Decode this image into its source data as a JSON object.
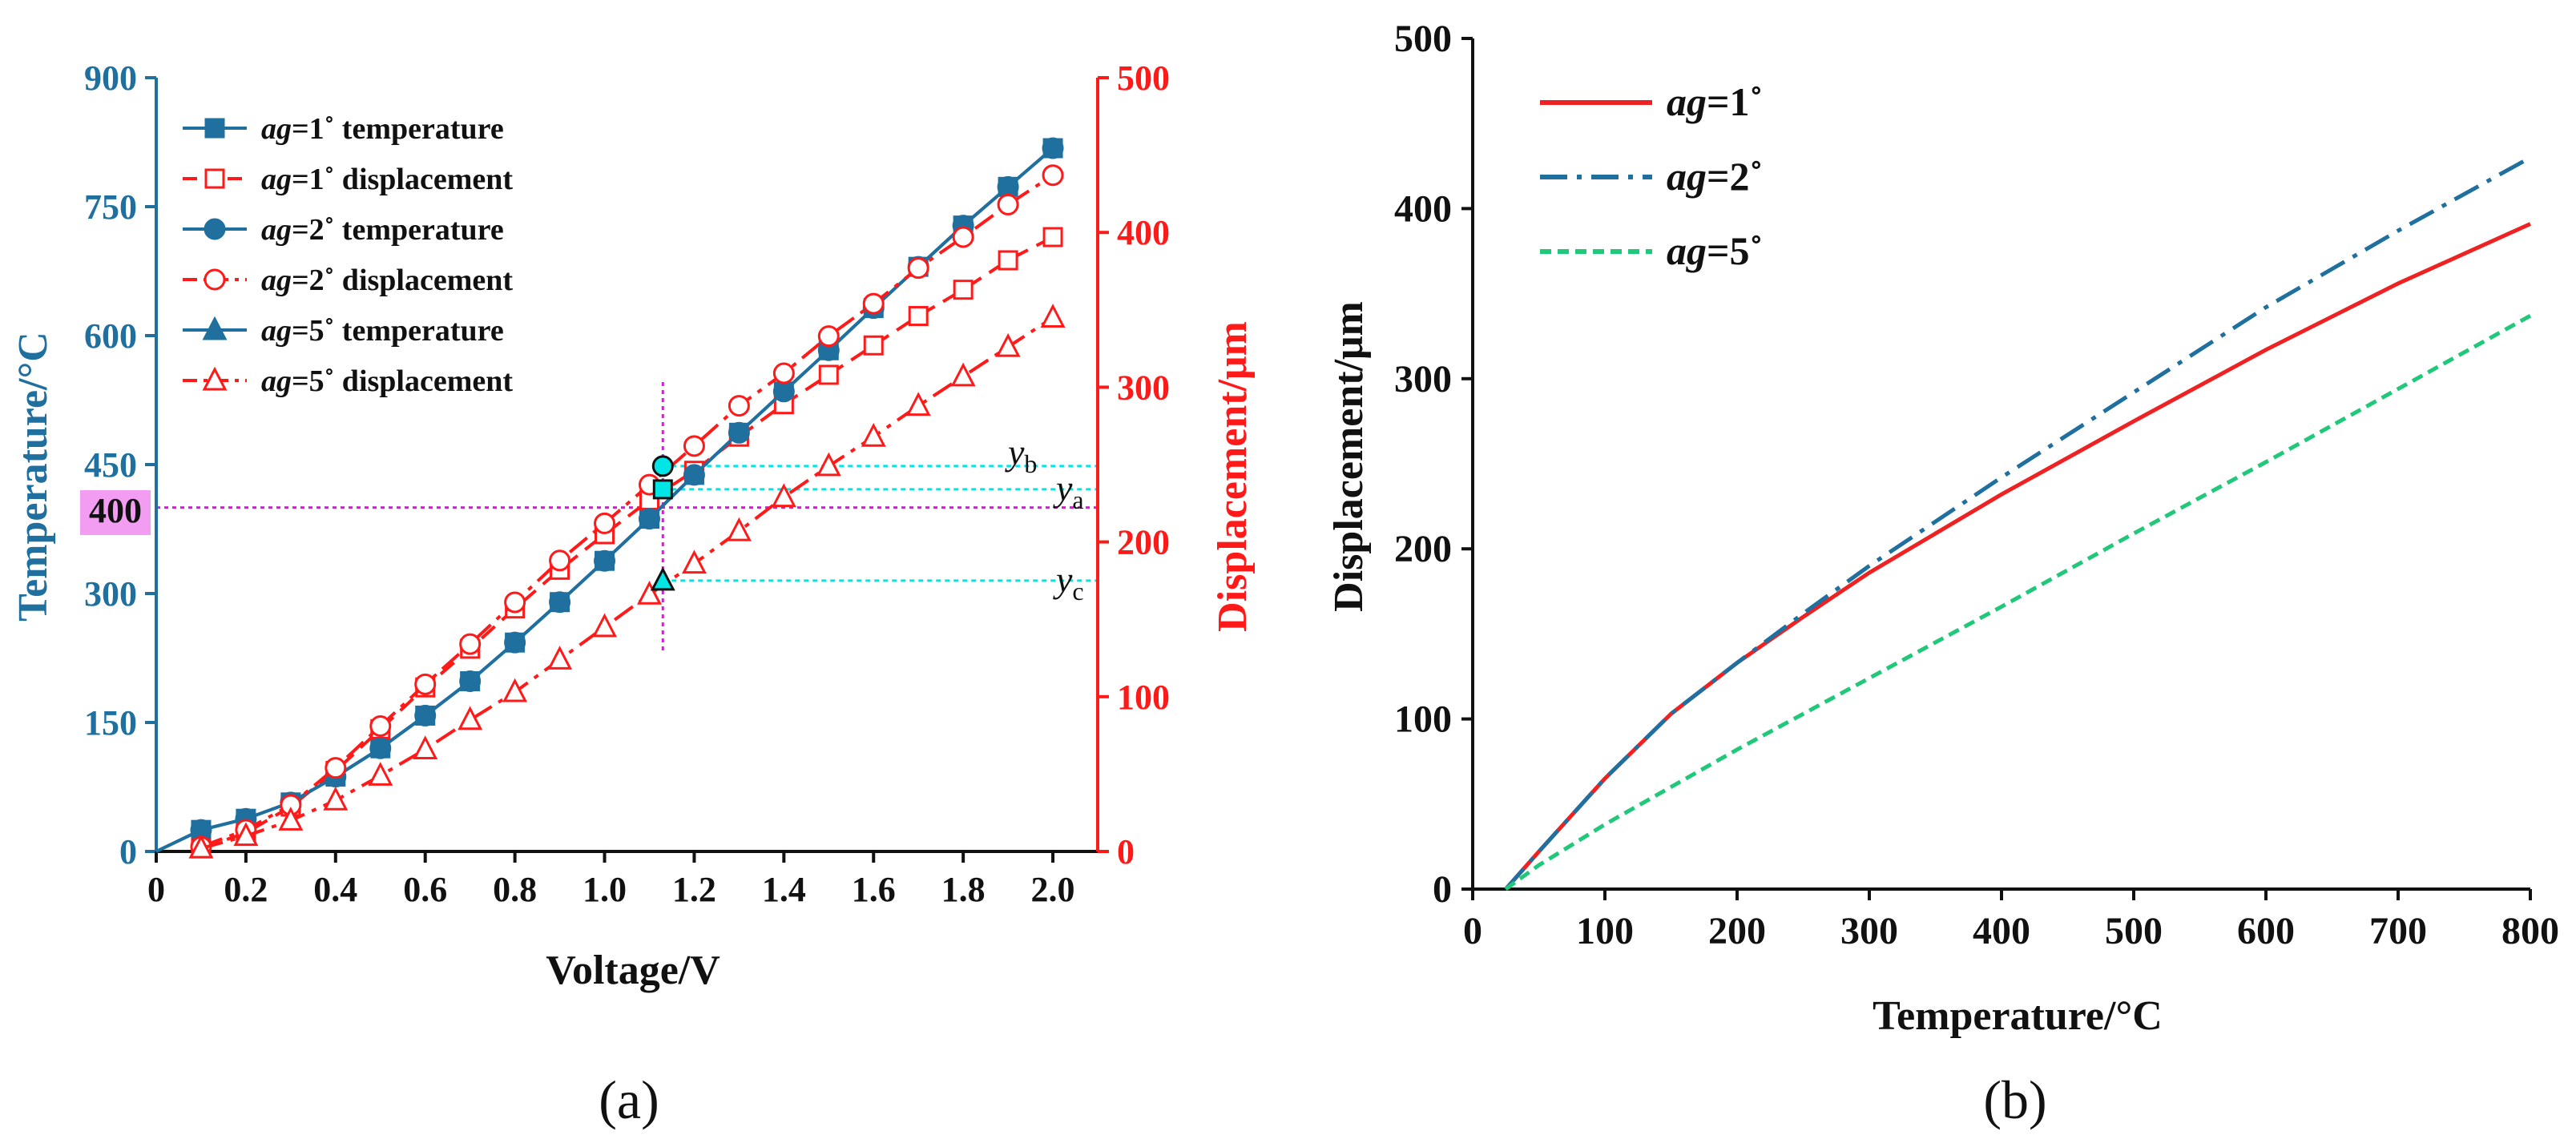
{
  "chart_data": [
    {
      "panel": "(a)",
      "type": "line",
      "xlabel": "Voltage/V",
      "ylabel_left": "Temperature/°C",
      "ylabel_right": "Displacement/μm",
      "xlim": [
        0,
        2.1
      ],
      "ylim_left": [
        0,
        900
      ],
      "ylim_right": [
        0,
        500
      ],
      "x_ticks": [
        "0",
        "0.2",
        "0.4",
        "0.6",
        "0.8",
        "1.0",
        "1.2",
        "1.4",
        "1.6",
        "1.8",
        "2.0"
      ],
      "y_left_ticks": [
        "0",
        "150",
        "300",
        "450",
        "600",
        "750",
        "900"
      ],
      "y_right_ticks": [
        "0",
        "100",
        "200",
        "300",
        "400",
        "500"
      ],
      "colors": {
        "temperature": "#1f6f9f",
        "displacement": "#ff1a1a",
        "guide": "#d020d0",
        "marker_guide": "#00e5e5"
      },
      "series": [
        {
          "name": "ag=1˚ temperature",
          "legend_prefix": "ag",
          "legend_suffix": "=1˚ temperature",
          "axis": "left",
          "marker": "filled-square",
          "style": "solid",
          "x": [
            0,
            0.1,
            0.2,
            0.3,
            0.4,
            0.5,
            0.6,
            0.7,
            0.8,
            0.9,
            1.0,
            1.1,
            1.2,
            1.3,
            1.4,
            1.5,
            1.6,
            1.7,
            1.8,
            1.9,
            2.0
          ],
          "values": [
            0,
            25,
            38,
            57,
            87,
            120,
            158,
            198,
            243,
            290,
            338,
            387,
            438,
            487,
            535,
            583,
            632,
            680,
            728,
            773,
            818
          ]
        },
        {
          "name": "ag=1˚ displacement",
          "legend_prefix": "ag",
          "legend_suffix": "=1˚ displacement",
          "axis": "right",
          "marker": "open-square",
          "style": "dash",
          "x": [
            0.1,
            0.2,
            0.3,
            0.4,
            0.5,
            0.6,
            0.7,
            0.8,
            0.9,
            1.0,
            1.1,
            1.2,
            1.3,
            1.4,
            1.5,
            1.6,
            1.7,
            1.8,
            1.9,
            2.0
          ],
          "values": [
            2,
            12,
            29,
            52,
            79,
            106,
            131,
            157,
            182,
            205,
            227,
            246,
            268,
            289,
            308,
            327,
            346,
            363,
            382,
            397
          ]
        },
        {
          "name": "ag=2˚ temperature",
          "legend_prefix": "ag",
          "legend_suffix": "=2˚ temperature",
          "axis": "left",
          "marker": "filled-circle",
          "style": "solid",
          "x": [
            0,
            0.1,
            0.2,
            0.3,
            0.4,
            0.5,
            0.6,
            0.7,
            0.8,
            0.9,
            1.0,
            1.1,
            1.2,
            1.3,
            1.4,
            1.5,
            1.6,
            1.7,
            1.8,
            1.9,
            2.0
          ],
          "values": [
            0,
            25,
            38,
            57,
            87,
            120,
            158,
            198,
            243,
            290,
            338,
            387,
            438,
            487,
            535,
            583,
            632,
            680,
            728,
            773,
            818
          ]
        },
        {
          "name": "ag=2˚ displacement",
          "legend_prefix": "ag",
          "legend_suffix": "=2˚ displacement",
          "axis": "right",
          "marker": "open-circle",
          "style": "dashdot",
          "x": [
            0.1,
            0.2,
            0.3,
            0.4,
            0.5,
            0.6,
            0.7,
            0.8,
            0.9,
            1.0,
            1.1,
            1.2,
            1.3,
            1.4,
            1.5,
            1.6,
            1.7,
            1.8,
            1.9,
            2.0
          ],
          "values": [
            3,
            14,
            30,
            54,
            81,
            108,
            134,
            161,
            188,
            212,
            237,
            262,
            288,
            309,
            333,
            354,
            377,
            397,
            418,
            437
          ]
        },
        {
          "name": "ag=5˚ temperature",
          "legend_prefix": "ag",
          "legend_suffix": "=5˚ temperature",
          "axis": "left",
          "marker": "filled-triangle",
          "style": "solid",
          "x": [],
          "values": []
        },
        {
          "name": "ag=5˚ displacement",
          "legend_prefix": "ag",
          "legend_suffix": "=5˚ displacement",
          "axis": "right",
          "marker": "open-triangle",
          "style": "dashdot",
          "x": [
            0.1,
            0.2,
            0.3,
            0.4,
            0.5,
            0.6,
            0.7,
            0.8,
            0.9,
            1.0,
            1.1,
            1.2,
            1.3,
            1.4,
            1.5,
            1.6,
            1.7,
            1.8,
            1.9,
            2.0
          ],
          "values": [
            2,
            10,
            20,
            33,
            49,
            66,
            85,
            103,
            124,
            145,
            166,
            186,
            207,
            229,
            249,
            268,
            288,
            307,
            326,
            345
          ]
        }
      ],
      "annotations": {
        "highlight_label": "400",
        "temperature_guide": 400,
        "voltage_guide": 1.13,
        "points": [
          {
            "label_base": "y",
            "label_sub": "b",
            "x": 1.13,
            "y": 249,
            "marker": "circle"
          },
          {
            "label_base": "y",
            "label_sub": "a",
            "x": 1.13,
            "y": 234,
            "marker": "square"
          },
          {
            "label_base": "y",
            "label_sub": "c",
            "x": 1.13,
            "y": 175,
            "marker": "triangle"
          }
        ]
      }
    },
    {
      "panel": "(b)",
      "type": "line",
      "xlabel": "Temperature/°C",
      "ylabel": "Displacement/μm",
      "xlim": [
        0,
        800
      ],
      "ylim": [
        0,
        500
      ],
      "x_ticks": [
        "0",
        "100",
        "200",
        "300",
        "400",
        "500",
        "600",
        "700",
        "800"
      ],
      "y_ticks": [
        "0",
        "100",
        "200",
        "300",
        "400",
        "500"
      ],
      "series": [
        {
          "name": "ag=1˚",
          "legend_prefix": "ag",
          "legend_suffix": "=1˚",
          "color": "#ee2222",
          "style": "solid",
          "x": [
            25,
            50,
            100,
            150,
            200,
            250,
            300,
            400,
            500,
            600,
            700,
            800
          ],
          "values": [
            0,
            22,
            65,
            103,
            133,
            160,
            186,
            232,
            275,
            317,
            356,
            391
          ]
        },
        {
          "name": "ag=2˚",
          "legend_prefix": "ag",
          "legend_suffix": "=2˚",
          "color": "#1f6f9f",
          "style": "dashdot",
          "x": [
            25,
            50,
            100,
            150,
            200,
            250,
            300,
            400,
            500,
            600,
            700,
            800
          ],
          "values": [
            0,
            22,
            65,
            103,
            133,
            162,
            190,
            242,
            292,
            342,
            387,
            430
          ]
        },
        {
          "name": "ag=5˚",
          "legend_prefix": "ag",
          "legend_suffix": "=5˚",
          "color": "#22c87a",
          "style": "dash",
          "x": [
            25,
            50,
            100,
            200,
            300,
            400,
            500,
            600,
            700,
            800
          ],
          "values": [
            0,
            14,
            38,
            82,
            124,
            166,
            209,
            251,
            294,
            337
          ]
        }
      ]
    }
  ]
}
